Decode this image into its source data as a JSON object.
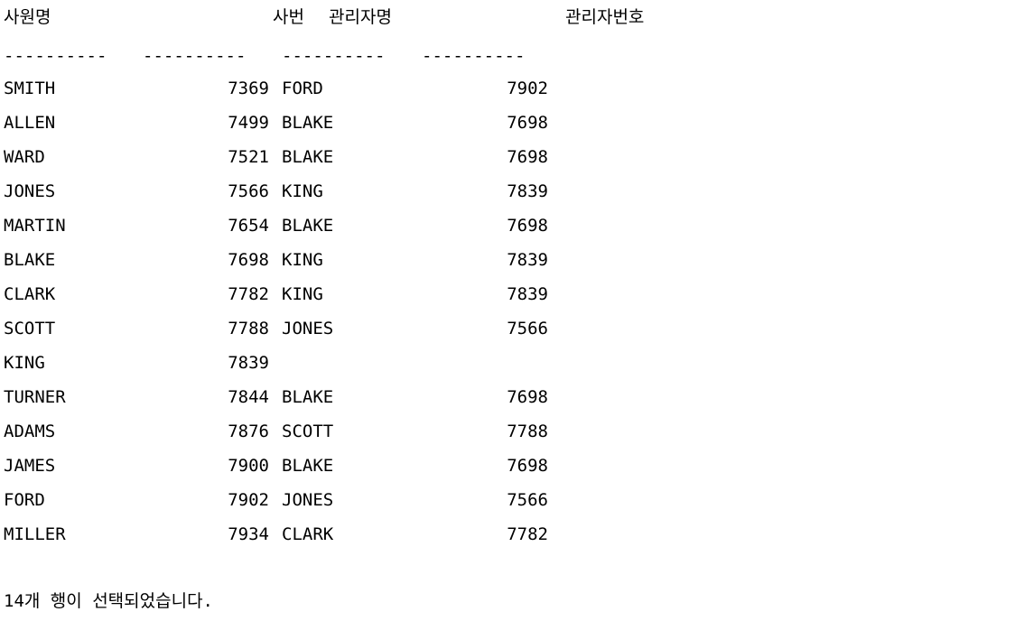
{
  "headers": {
    "name": "사원명",
    "empno": "사번",
    "mgrname": "관리자명",
    "mgrno": "관리자번호"
  },
  "separator": "----------",
  "rows": [
    {
      "name": "SMITH",
      "empno": "7369",
      "mgrname": "FORD",
      "mgrno": "7902"
    },
    {
      "name": "ALLEN",
      "empno": "7499",
      "mgrname": "BLAKE",
      "mgrno": "7698"
    },
    {
      "name": "WARD",
      "empno": "7521",
      "mgrname": "BLAKE",
      "mgrno": "7698"
    },
    {
      "name": "JONES",
      "empno": "7566",
      "mgrname": "KING",
      "mgrno": "7839"
    },
    {
      "name": "MARTIN",
      "empno": "7654",
      "mgrname": "BLAKE",
      "mgrno": "7698"
    },
    {
      "name": "BLAKE",
      "empno": "7698",
      "mgrname": "KING",
      "mgrno": "7839"
    },
    {
      "name": "CLARK",
      "empno": "7782",
      "mgrname": "KING",
      "mgrno": "7839"
    },
    {
      "name": "SCOTT",
      "empno": "7788",
      "mgrname": "JONES",
      "mgrno": "7566"
    },
    {
      "name": "KING",
      "empno": "7839",
      "mgrname": "",
      "mgrno": ""
    },
    {
      "name": "TURNER",
      "empno": "7844",
      "mgrname": "BLAKE",
      "mgrno": "7698"
    },
    {
      "name": "ADAMS",
      "empno": "7876",
      "mgrname": "SCOTT",
      "mgrno": "7788"
    },
    {
      "name": "JAMES",
      "empno": "7900",
      "mgrname": "BLAKE",
      "mgrno": "7698"
    },
    {
      "name": "FORD",
      "empno": "7902",
      "mgrname": "JONES",
      "mgrno": "7566"
    },
    {
      "name": "MILLER",
      "empno": "7934",
      "mgrname": "CLARK",
      "mgrno": "7782"
    }
  ],
  "status": "14개 행이 선택되었습니다."
}
